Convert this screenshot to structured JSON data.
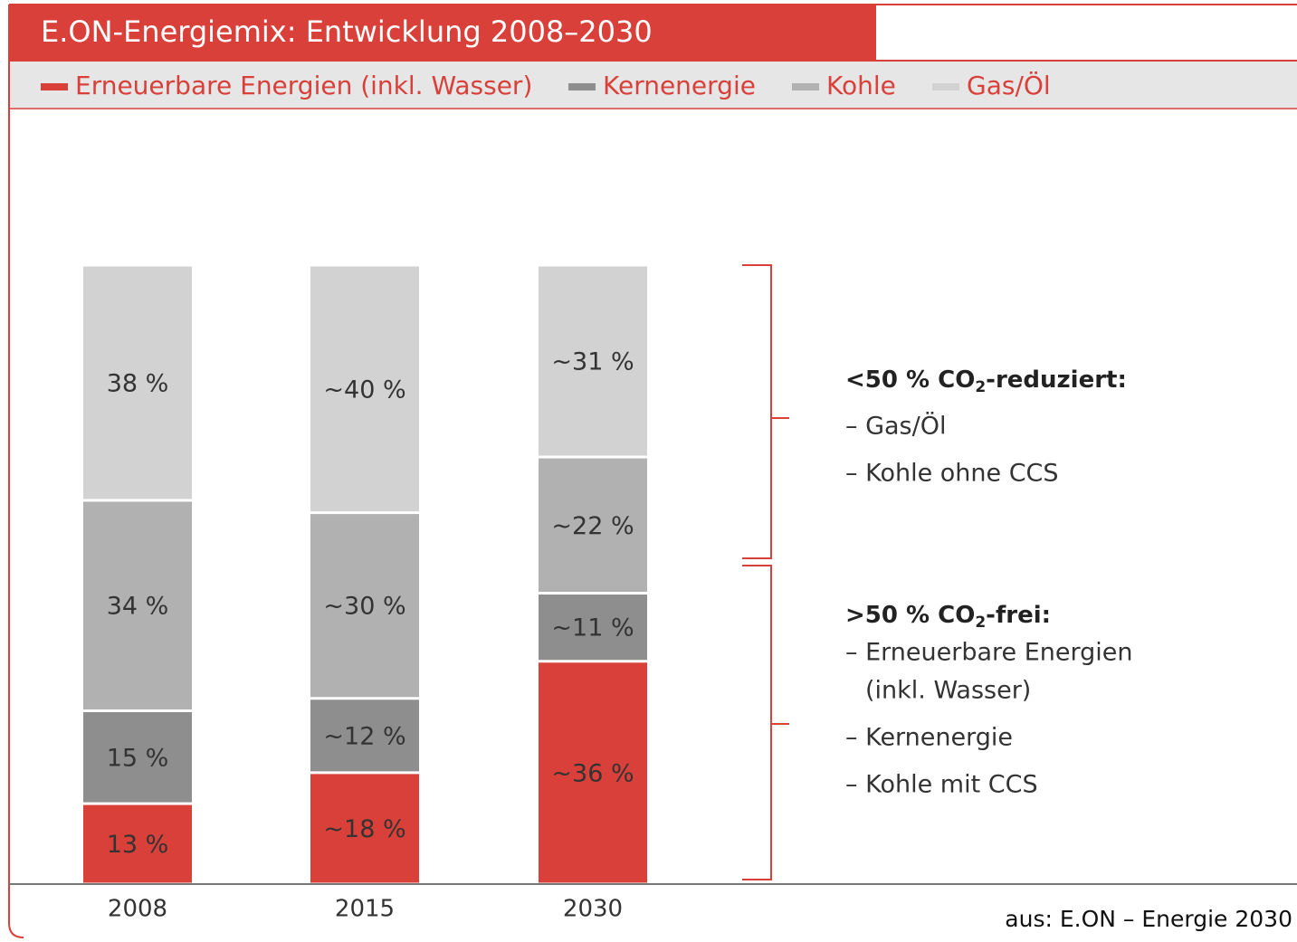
{
  "chart_data": {
    "type": "stacked_bar",
    "title": "E.ON-Energiemix: Entwicklung 2008–2030",
    "categories": [
      "2008",
      "2015",
      "2030"
    ],
    "series": [
      {
        "name": "Erneuerbare Energien (inkl. Wasser)",
        "color": "#d9403a",
        "values": [
          13,
          18,
          36
        ],
        "value_labels": [
          "13 %",
          "~18 %",
          "~36 %"
        ]
      },
      {
        "name": "Kernenergie",
        "color": "#8e8e8e",
        "values": [
          15,
          12,
          11
        ],
        "value_labels": [
          "15 %",
          "~12 %",
          "~11 %"
        ]
      },
      {
        "name": "Kohle",
        "color": "#b1b1b1",
        "values": [
          34,
          30,
          22
        ],
        "value_labels": [
          "34 %",
          "~30 %",
          "~22 %"
        ]
      },
      {
        "name": "Gas/Öl",
        "color": "#d2d2d2",
        "values": [
          38,
          40,
          31
        ],
        "value_labels": [
          "38 %",
          "~40 %",
          "~31 %"
        ]
      }
    ],
    "ylim": [
      0,
      100
    ],
    "annotations": [
      {
        "title": [
          "<50 % CO",
          "2",
          "-reduziert:"
        ],
        "lines": [
          "– Gas/Öl",
          "– Kohle ohne CCS"
        ]
      },
      {
        "title": [
          ">50 % CO",
          "2",
          "-frei:"
        ],
        "lines": [
          "– Erneuerbare Energien",
          "(inkl. Wasser)",
          "– Kernenergie",
          "– Kohle mit CCS"
        ]
      }
    ],
    "source": "aus: E.ON – Energie 2030"
  }
}
